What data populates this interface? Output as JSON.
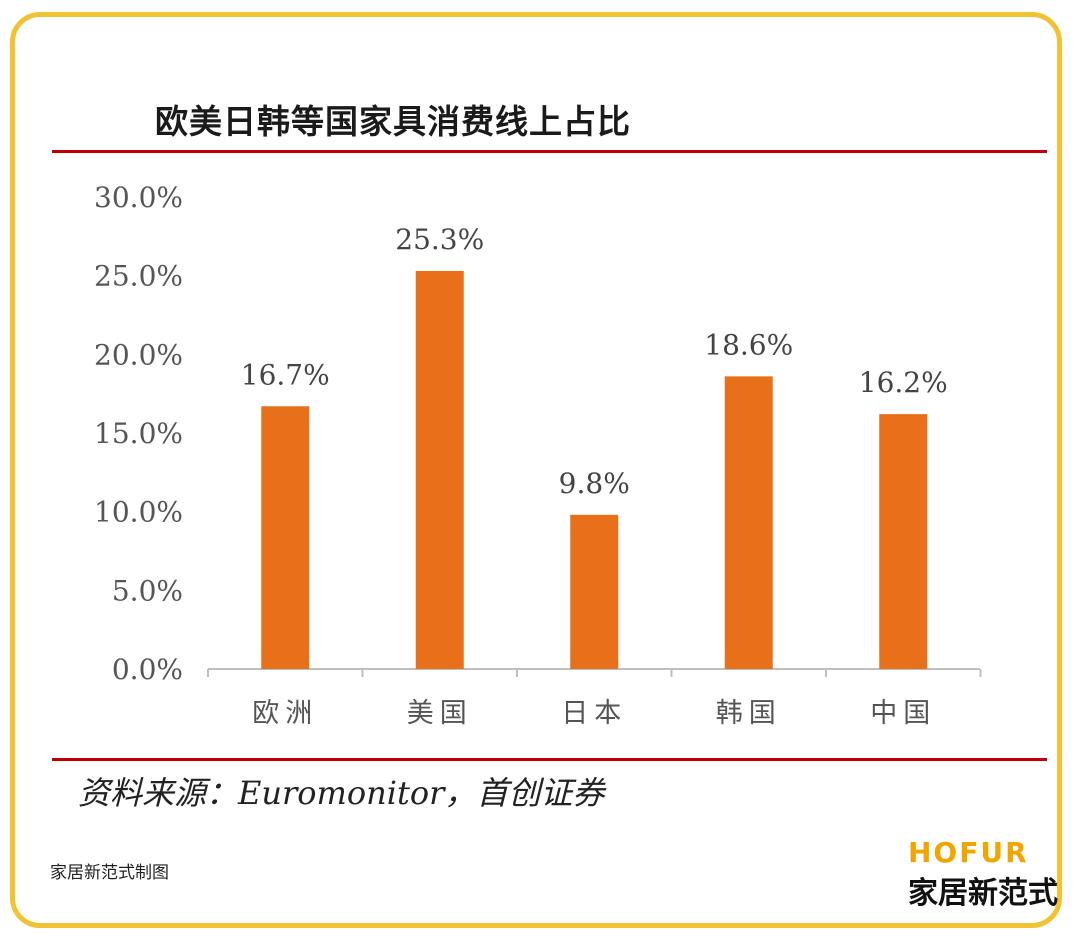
{
  "chart_data": {
    "type": "bar",
    "title": "欧美日韩等国家具消费线上占比",
    "categories": [
      "欧洲",
      "美国",
      "日本",
      "韩国",
      "中国"
    ],
    "values": [
      16.7,
      25.3,
      9.8,
      18.6,
      16.2
    ],
    "value_labels": [
      "16.7%",
      "25.3%",
      "9.8%",
      "18.6%",
      "16.2%"
    ],
    "yticks": [
      "0.0%",
      "5.0%",
      "10.0%",
      "15.0%",
      "20.0%",
      "25.0%",
      "30.0%"
    ],
    "ylim": [
      0,
      30
    ],
    "grid": false,
    "bar_color": "#e8701a"
  },
  "source": "资料来源：Euromonitor，首创证券",
  "credit": "家居新范式制图",
  "brand": {
    "en": "HOFUR",
    "cn": "家居新范式"
  },
  "colors": {
    "frame": "#f1c232",
    "rule": "#c00000",
    "brand": "#f0a500"
  }
}
